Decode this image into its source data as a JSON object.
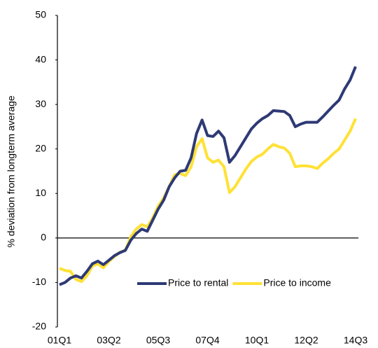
{
  "chart_data": {
    "type": "line",
    "y_label": "% deviation from longterm average",
    "categories": [
      "01Q1",
      null,
      null,
      null,
      null,
      null,
      null,
      null,
      null,
      "03Q2",
      null,
      null,
      null,
      null,
      null,
      null,
      null,
      null,
      "05Q3",
      null,
      null,
      null,
      null,
      null,
      null,
      null,
      null,
      "07Q4",
      null,
      null,
      null,
      null,
      null,
      null,
      null,
      null,
      "10Q1",
      null,
      null,
      null,
      null,
      null,
      null,
      null,
      null,
      "12Q2",
      null,
      null,
      null,
      null,
      null,
      null,
      null,
      null,
      "14Q3"
    ],
    "series": [
      {
        "name": "Price to rental",
        "color": "#2e3a75",
        "values": [
          -10.5,
          -10,
          -9,
          -8.5,
          -9,
          -7.5,
          -5.8,
          -5.2,
          -6,
          -5,
          -4,
          -3.3,
          -2.8,
          -0.5,
          1,
          2,
          1.5,
          4,
          6.5,
          8.5,
          11.5,
          13.5,
          15,
          15.2,
          18,
          23.5,
          26.5,
          23,
          22.8,
          24,
          22.5,
          17,
          18.5,
          20.5,
          22.5,
          24.5,
          25.8,
          26.8,
          27.5,
          28.6,
          28.5,
          28.4,
          27.5,
          25,
          25.6,
          26,
          26,
          26,
          27.2,
          28.5,
          29.8,
          31,
          33.5,
          35.5,
          38.5
        ]
      },
      {
        "name": "Price to income",
        "color": "#ffe135",
        "values": [
          -6.8,
          -7.3,
          -7.5,
          -9.3,
          -9.8,
          -8.5,
          -6.3,
          -5.8,
          -6.7,
          -5.3,
          -4.2,
          -3.2,
          -2.8,
          0.3,
          2,
          3,
          2.5,
          4.5,
          7.2,
          9,
          11.5,
          14.2,
          14.5,
          14,
          16,
          20.5,
          22.3,
          18,
          17,
          17.5,
          16,
          10.2,
          11.5,
          13.5,
          15.5,
          17.2,
          18.2,
          18.8,
          20,
          21,
          20.5,
          20.2,
          19,
          16,
          16.2,
          16.2,
          16,
          15.6,
          16.8,
          17.8,
          19,
          20,
          22,
          24,
          26.8
        ]
      }
    ],
    "ylim": [
      -20,
      50
    ],
    "yticks": [
      -20,
      -10,
      0,
      10,
      20,
      30,
      40,
      50
    ],
    "grid": false,
    "legend": "lower right"
  }
}
